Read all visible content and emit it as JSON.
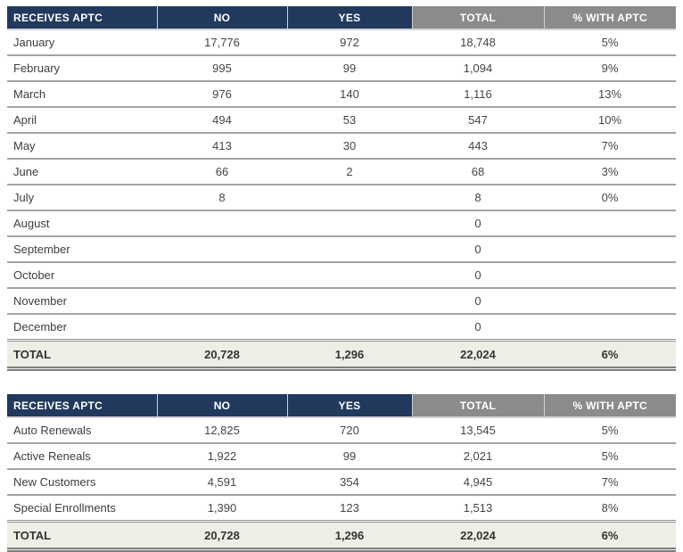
{
  "colors": {
    "header_blue": "#21395c",
    "header_gray": "#8b8b8b",
    "total_row_bg": "#efeee6",
    "row_divider": "#a3a3a3"
  },
  "tables": [
    {
      "id": "monthly-aptc",
      "header": [
        "RECEIVES APTC",
        "NO",
        "YES",
        "TOTAL",
        "% WITH APTC"
      ],
      "rows": [
        [
          "January",
          "17,776",
          "972",
          "18,748",
          "5%"
        ],
        [
          "February",
          "995",
          "99",
          "1,094",
          "9%"
        ],
        [
          "March",
          "976",
          "140",
          "1,116",
          "13%"
        ],
        [
          "April",
          "494",
          "53",
          "547",
          "10%"
        ],
        [
          "May",
          "413",
          "30",
          "443",
          "7%"
        ],
        [
          "June",
          "66",
          "2",
          "68",
          "3%"
        ],
        [
          "July",
          "8",
          "",
          "8",
          "0%"
        ],
        [
          "August",
          "",
          "",
          "0",
          ""
        ],
        [
          "September",
          "",
          "",
          "0",
          ""
        ],
        [
          "October",
          "",
          "",
          "0",
          ""
        ],
        [
          "November",
          "",
          "",
          "0",
          ""
        ],
        [
          "December",
          "",
          "",
          "0",
          ""
        ]
      ],
      "total": [
        "TOTAL",
        "20,728",
        "1,296",
        "22,024",
        "6%"
      ]
    },
    {
      "id": "enrollment-type-aptc",
      "header": [
        "RECEIVES APTC",
        "NO",
        "YES",
        "TOTAL",
        "% WITH APTC"
      ],
      "rows": [
        [
          "Auto Renewals",
          "12,825",
          "720",
          "13,545",
          "5%"
        ],
        [
          "Active Reneals",
          "1,922",
          "99",
          "2,021",
          "5%"
        ],
        [
          "New Customers",
          "4,591",
          "354",
          "4,945",
          "7%"
        ],
        [
          "Special Enrollments",
          "1,390",
          "123",
          "1,513",
          "8%"
        ]
      ],
      "total": [
        "TOTAL",
        "20,728",
        "1,296",
        "22,024",
        "6%"
      ]
    }
  ]
}
